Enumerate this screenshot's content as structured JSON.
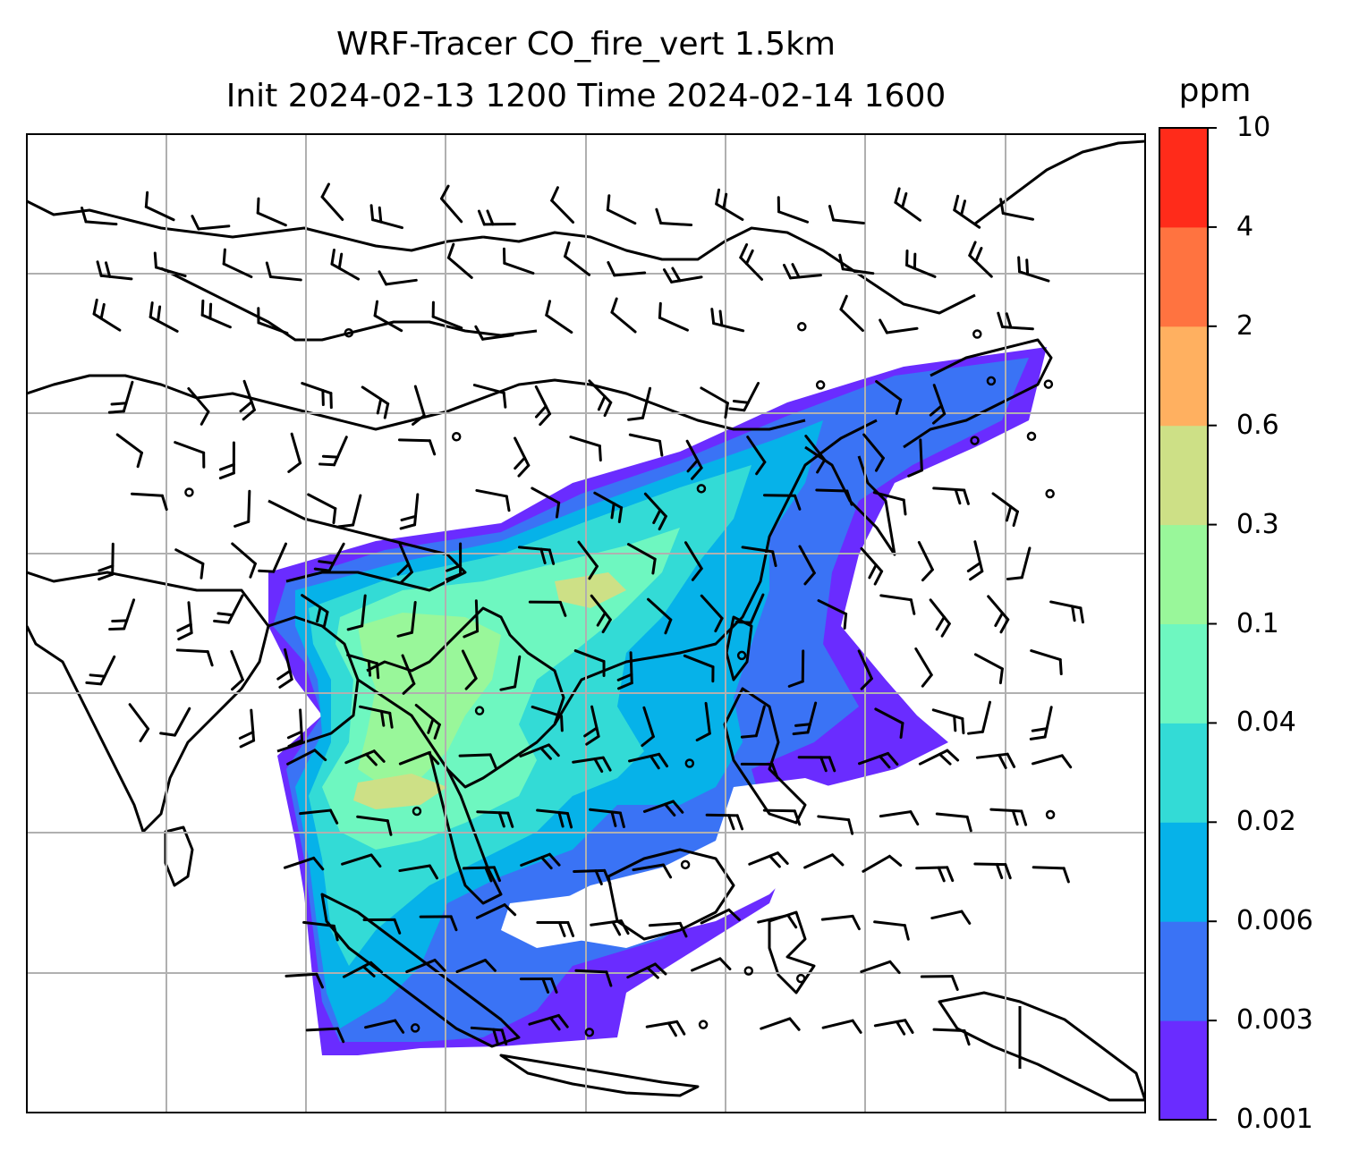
{
  "title": {
    "line1": "WRF-Tracer CO_fire_vert 1.5km",
    "line2": "Init 2024-02-13 1200 Time 2024-02-14 1600"
  },
  "colorbar": {
    "unit": "ppm",
    "ticks": [
      "0.001",
      "0.003",
      "0.006",
      "0.02",
      "0.04",
      "0.1",
      "0.3",
      "0.6",
      "2",
      "4",
      "10"
    ],
    "colors": [
      "#6a2cff",
      "#3a73f5",
      "#06b2e9",
      "#33dbd6",
      "#6ef7c0",
      "#99f79a",
      "#cde086",
      "#ffb060",
      "#ff7340",
      "#ff2b1a"
    ]
  },
  "map": {
    "variable": "CO_fire_vert",
    "level": "1.5km",
    "gridlines": true,
    "grid_color": "#b0b0b0",
    "coastline_color": "#000000",
    "wind_barbs": true
  }
}
